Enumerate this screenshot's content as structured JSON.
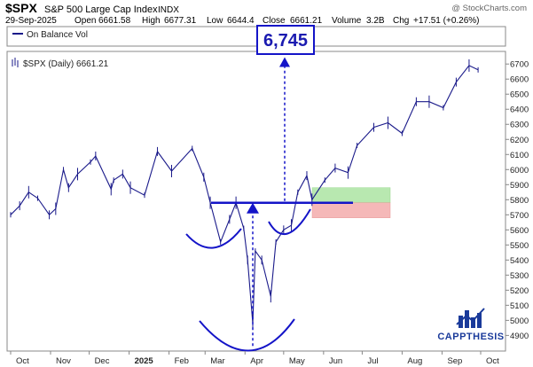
{
  "header": {
    "symbol": "$SPX",
    "name": "S&P 500 Large Cap Index",
    "exchange": "INDX",
    "date": "29-Sep-2025",
    "open_label": "Open",
    "open_value": "6661.58",
    "high_label": "High",
    "high_value": "6677.31",
    "low_label": "Low",
    "low_value": "6644.4",
    "close_label": "Close",
    "close_value": "6661.21",
    "volume_label": "Volume",
    "volume_value": "3.2B",
    "chg_label": "Chg",
    "chg_value": "+17.51 (+0.26%)",
    "watermark": "@ StockCharts.com"
  },
  "indicator": {
    "label": "On Balance Vol"
  },
  "price_label": "$SPX (Daily) 6661.21",
  "annotations": {
    "target_value": "6,745",
    "brand": "CAPPTHESIS",
    "neckline_value": 5780,
    "target_arrow_from": 5780,
    "target_arrow_to": 6745,
    "measure_arrow_from": 4830,
    "measure_arrow_to": 5780,
    "green_zone": [
      5780,
      5880
    ],
    "red_zone": [
      5680,
      5780
    ]
  },
  "colors": {
    "price": "#1a1a8a",
    "annotation": "#1414c8",
    "green_zone": "#b8e8b0",
    "red_zone": "#f5b8b8",
    "brand": "#1a3a9a"
  },
  "chart_data": {
    "type": "line",
    "x_axis_labels": [
      "Oct",
      "Nov",
      "Dec",
      "2025",
      "Feb",
      "Mar",
      "Apr",
      "May",
      "Jun",
      "Jul",
      "Aug",
      "Sep",
      "Oct"
    ],
    "yticks": [
      4900,
      5000,
      5100,
      5200,
      5300,
      5400,
      5500,
      5600,
      5700,
      5800,
      5900,
      6000,
      6100,
      6200,
      6300,
      6400,
      6500,
      6600,
      6700
    ],
    "ylim": [
      4820,
      6760
    ],
    "grid": false,
    "legend_position": "none",
    "series": [
      {
        "x": [
          "2024-10-01",
          "2024-10-08",
          "2024-10-15",
          "2024-10-22",
          "2024-10-31",
          "2024-11-05",
          "2024-11-11",
          "2024-11-15",
          "2024-11-22",
          "2024-12-02",
          "2024-12-06",
          "2024-12-18",
          "2024-12-20",
          "2024-12-27",
          "2025-01-02",
          "2025-01-13",
          "2025-01-23",
          "2025-02-03",
          "2025-02-19",
          "2025-02-28",
          "2025-03-05",
          "2025-03-13",
          "2025-03-20",
          "2025-03-25",
          "2025-03-31",
          "2025-04-03",
          "2025-04-07",
          "2025-04-09",
          "2025-04-14",
          "2025-04-21",
          "2025-04-25",
          "2025-05-01",
          "2025-05-07",
          "2025-05-12",
          "2025-05-19",
          "2025-05-23",
          "2025-06-02",
          "2025-06-10",
          "2025-06-20",
          "2025-06-27",
          "2025-07-10",
          "2025-07-21",
          "2025-08-01",
          "2025-08-12",
          "2025-08-22",
          "2025-09-02",
          "2025-09-12",
          "2025-09-22",
          "2025-09-29"
        ],
        "values": [
          5700,
          5760,
          5850,
          5810,
          5700,
          5740,
          6000,
          5880,
          5970,
          6050,
          6090,
          5870,
          5930,
          5970,
          5880,
          5830,
          6120,
          5990,
          6140,
          5950,
          5780,
          5520,
          5670,
          5780,
          5610,
          5400,
          4980,
          5460,
          5400,
          5160,
          5520,
          5600,
          5630,
          5850,
          5960,
          5800,
          5930,
          6010,
          5980,
          6160,
          6280,
          6310,
          6240,
          6450,
          6450,
          6410,
          6580,
          6690,
          6661
        ]
      }
    ]
  }
}
